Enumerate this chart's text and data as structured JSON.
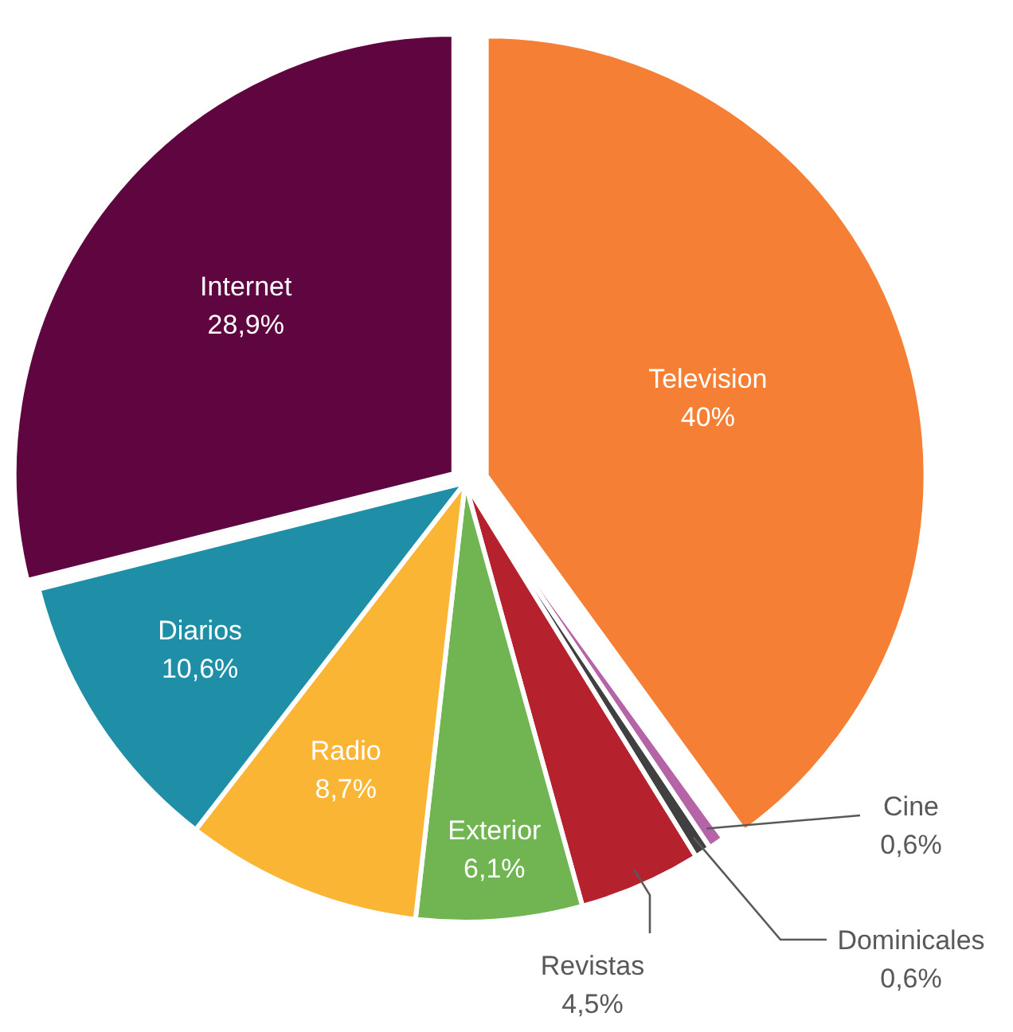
{
  "chart_data": {
    "type": "pie",
    "categories": [
      "Television",
      "Cine",
      "Dominicales",
      "Revistas",
      "Exterior",
      "Radio",
      "Diarios",
      "Internet"
    ],
    "values": [
      40,
      0.6,
      0.6,
      4.5,
      6.1,
      8.7,
      10.6,
      28.9
    ],
    "value_labels": [
      "40%",
      "0,6%",
      "0,6%",
      "4,5%",
      "6,1%",
      "8,7%",
      "10,6%",
      "28,9%"
    ],
    "colors": [
      "#f47f35",
      "#b565a7",
      "#404040",
      "#b5222d",
      "#70b552",
      "#fbb534",
      "#1f8fa8",
      "#5f0540"
    ]
  }
}
